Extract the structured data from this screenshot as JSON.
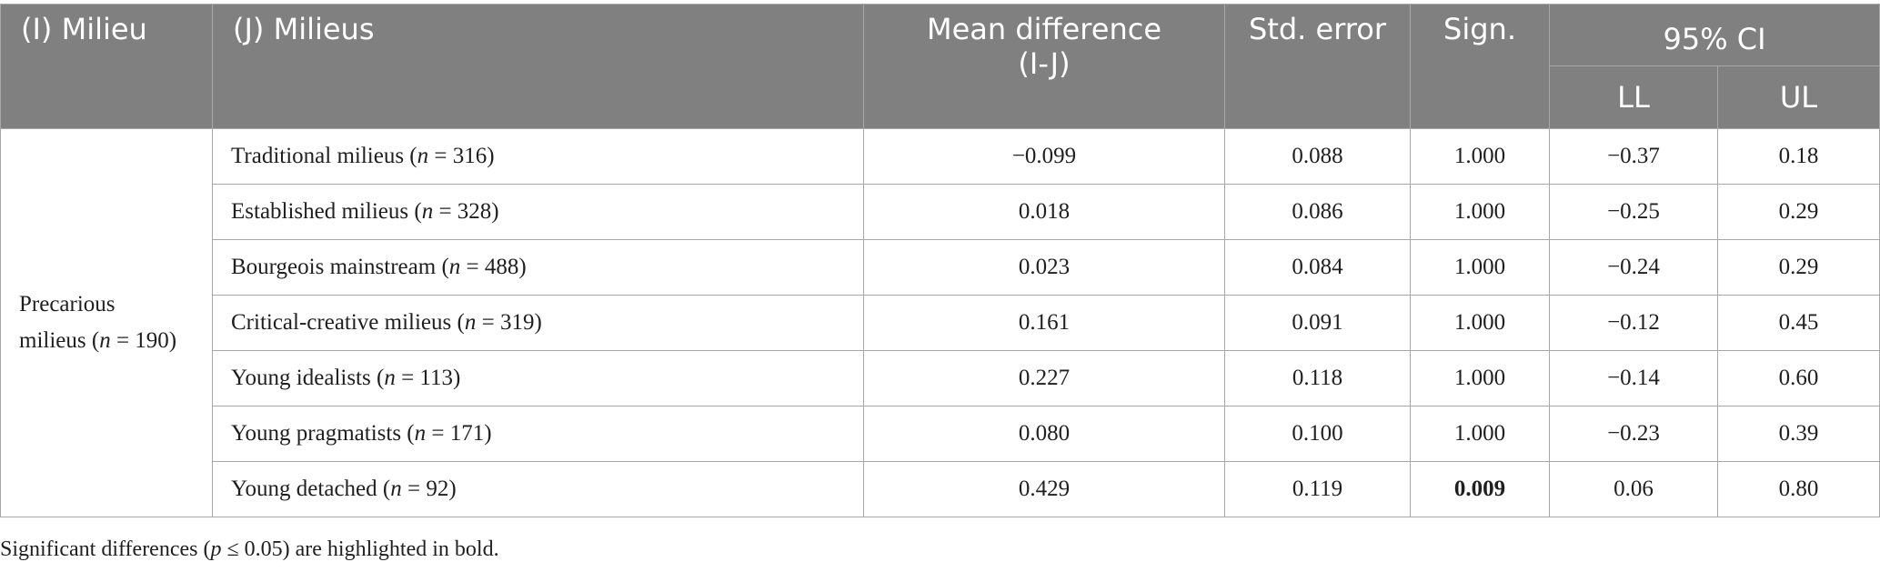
{
  "headers": {
    "i_milieu": "(I) Milieu",
    "j_milieus": "(J) Milieus",
    "mean_diff_line1": "Mean difference",
    "mean_diff_line2": "(I-J)",
    "std_error": "Std. error",
    "sign": "Sign.",
    "ci": "95% CI",
    "ll": "LL",
    "ul": "UL"
  },
  "i_group": {
    "line1": "Precarious",
    "line2_prefix": "milieus (",
    "n_symbol": "n",
    "line2_value": " = 190)"
  },
  "rows": [
    {
      "name": "Traditional milieus (",
      "n": "n",
      "count": " = 316)",
      "mean_diff": "−0.099",
      "std_error": "0.088",
      "sign": "1.000",
      "ll": "−0.37",
      "ul": "0.18",
      "significant": false
    },
    {
      "name": "Established milieus (",
      "n": "n",
      "count": " = 328)",
      "mean_diff": "0.018",
      "std_error": "0.086",
      "sign": "1.000",
      "ll": "−0.25",
      "ul": "0.29",
      "significant": false
    },
    {
      "name": "Bourgeois mainstream (",
      "n": "n",
      "count": " = 488)",
      "mean_diff": "0.023",
      "std_error": "0.084",
      "sign": "1.000",
      "ll": "−0.24",
      "ul": "0.29",
      "significant": false
    },
    {
      "name": "Critical-creative milieus (",
      "n": "n",
      "count": " = 319)",
      "mean_diff": "0.161",
      "std_error": "0.091",
      "sign": "1.000",
      "ll": "−0.12",
      "ul": "0.45",
      "significant": false
    },
    {
      "name": "Young idealists (",
      "n": "n",
      "count": " = 113)",
      "mean_diff": "0.227",
      "std_error": "0.118",
      "sign": "1.000",
      "ll": "−0.14",
      "ul": "0.60",
      "significant": false
    },
    {
      "name": "Young pragmatists (",
      "n": "n",
      "count": " = 171)",
      "mean_diff": "0.080",
      "std_error": "0.100",
      "sign": "1.000",
      "ll": "−0.23",
      "ul": "0.39",
      "significant": false
    },
    {
      "name": "Young detached (",
      "n": "n",
      "count": " = 92)",
      "mean_diff": "0.429",
      "std_error": "0.119",
      "sign": "0.009",
      "ll": "0.06",
      "ul": "0.80",
      "significant": true
    }
  ],
  "note": {
    "prefix": "Significant differences (",
    "p": "p",
    "suffix": " ≤ 0.05) are highlighted in bold."
  }
}
